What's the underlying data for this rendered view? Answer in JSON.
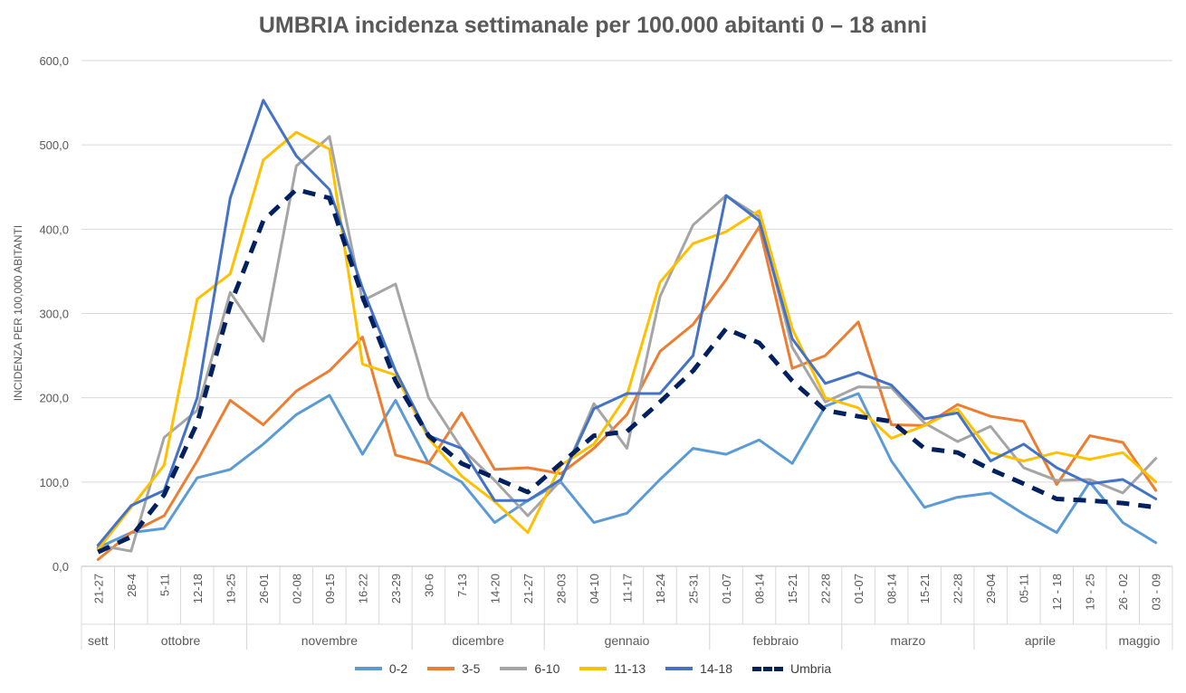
{
  "chart_data": {
    "type": "line",
    "title": "UMBRIA incidenza settimanale per 100.000 abitanti 0 – 18 anni",
    "ylabel": "INCIDENZA PER 100,000 ABITANTI",
    "xlabel": "",
    "ylim": [
      0,
      600
    ],
    "yticks": [
      "0,0",
      "100,0",
      "200,0",
      "300,0",
      "400,0",
      "500,0",
      "600,0"
    ],
    "grid": true,
    "legend_position": "bottom",
    "categories": [
      "21-27",
      "28-4",
      "5-11",
      "12-18",
      "19-25",
      "26-01",
      "02-08",
      "09-15",
      "16-22",
      "23-29",
      "30-6",
      "7-13",
      "14-20",
      "21-27",
      "28-03",
      "04-10",
      "11-17",
      "18-24",
      "25-31",
      "01-07",
      "08-14",
      "15-21",
      "22-28",
      "01-07",
      "08-14",
      "15-21",
      "22-28",
      "29-04",
      "05-11",
      "12 - 18",
      "19 - 25",
      "26 - 02",
      "03 - 09"
    ],
    "months": [
      {
        "label": "sett",
        "start": 0,
        "end": 0
      },
      {
        "label": "ottobre",
        "start": 1,
        "end": 4
      },
      {
        "label": "novembre",
        "start": 5,
        "end": 9
      },
      {
        "label": "dicembre",
        "start": 10,
        "end": 13
      },
      {
        "label": "gennaio",
        "start": 14,
        "end": 18
      },
      {
        "label": "febbraio",
        "start": 19,
        "end": 22
      },
      {
        "label": "marzo",
        "start": 23,
        "end": 26
      },
      {
        "label": "aprile",
        "start": 27,
        "end": 30
      },
      {
        "label": "maggio",
        "start": 31,
        "end": 32
      }
    ],
    "series": [
      {
        "name": "0-2",
        "color": "#5B9BD5",
        "dashed": false,
        "values": [
          22,
          40,
          45,
          105,
          115,
          145,
          180,
          203,
          133,
          197,
          122,
          100,
          52,
          78,
          100,
          52,
          63,
          103,
          140,
          133,
          150,
          122,
          190,
          205,
          125,
          70,
          82,
          87,
          62,
          40,
          100,
          52,
          28
        ]
      },
      {
        "name": "3-5",
        "color": "#ED7D31",
        "dashed": false,
        "values": [
          8,
          40,
          60,
          125,
          197,
          168,
          208,
          232,
          272,
          132,
          122,
          182,
          115,
          117,
          110,
          140,
          180,
          255,
          287,
          340,
          403,
          235,
          250,
          290,
          168,
          167,
          192,
          178,
          172,
          97,
          155,
          147,
          90
        ]
      },
      {
        "name": "6-10",
        "color": "#A5A5A5",
        "dashed": false,
        "values": [
          25,
          18,
          153,
          185,
          325,
          267,
          475,
          510,
          315,
          335,
          200,
          140,
          102,
          60,
          102,
          193,
          140,
          320,
          405,
          440,
          415,
          260,
          195,
          213,
          212,
          170,
          148,
          166,
          117,
          102,
          103,
          87,
          128
        ]
      },
      {
        "name": "11-13",
        "color": "#FFC000",
        "dashed": false,
        "values": [
          20,
          70,
          120,
          317,
          347,
          482,
          515,
          495,
          240,
          227,
          152,
          107,
          77,
          40,
          120,
          145,
          203,
          337,
          383,
          397,
          422,
          282,
          200,
          188,
          152,
          167,
          187,
          135,
          125,
          135,
          127,
          135,
          100
        ]
      },
      {
        "name": "14-18",
        "color": "#4472C4",
        "dashed": false,
        "values": [
          25,
          72,
          90,
          200,
          437,
          553,
          487,
          447,
          330,
          232,
          155,
          140,
          78,
          78,
          103,
          187,
          205,
          205,
          250,
          440,
          410,
          270,
          217,
          230,
          215,
          175,
          182,
          125,
          145,
          117,
          98,
          103,
          80
        ]
      },
      {
        "name": "Umbria",
        "color": "#002060",
        "dashed": true,
        "values": [
          17,
          35,
          85,
          170,
          310,
          410,
          447,
          437,
          320,
          220,
          155,
          122,
          105,
          88,
          122,
          155,
          160,
          195,
          232,
          282,
          265,
          220,
          185,
          178,
          172,
          140,
          135,
          115,
          98,
          80,
          78,
          75,
          70
        ]
      }
    ]
  }
}
